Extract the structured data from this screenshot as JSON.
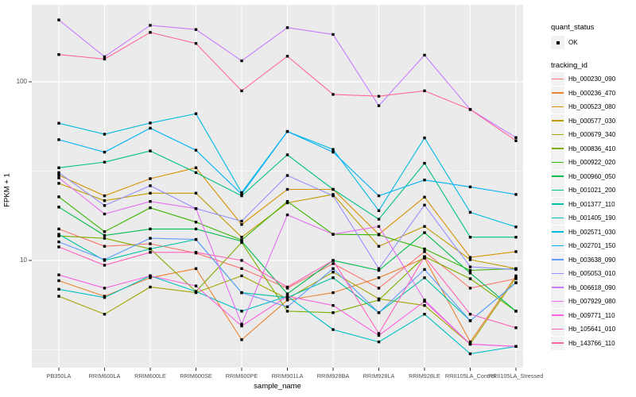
{
  "chart_data": {
    "type": "line",
    "title": "",
    "xlabel": "sample_name",
    "ylabel": "FPKM + 1",
    "y_scale": "log10",
    "grid": true,
    "panel_bg": "#EBEBEB",
    "gridline_color": "#FFFFFF",
    "point_color": "#000000",
    "y_ticks": [
      {
        "label": "100",
        "value": 100
      },
      {
        "label": "10",
        "value": 10
      }
    ],
    "y_minor_breaks": [
      3.162,
      31.62
    ],
    "categories": [
      "PB350LA",
      "RRIM600LA",
      "RRIM600LE",
      "RRIM600SE",
      "RRIM600PE",
      "RRIM901LA",
      "RRIM928BA",
      "RRIM928LA",
      "RRIM928LE",
      "RRII105LA_Control",
      "RRII105LA_Stressed"
    ],
    "legend": {
      "quant_status_title": "quant_status",
      "quant_status_items": [
        {
          "label": "OK"
        }
      ],
      "tracking_title": "tracking_id"
    },
    "series": [
      {
        "name": "Hb_000230_090",
        "color": "#F8766D",
        "values": [
          15.0,
          12.0,
          12.4,
          11.0,
          9.0,
          7.0,
          9.6,
          7.0,
          11.2,
          7.0,
          7.9
        ]
      },
      {
        "name": "Hb_000236_470",
        "color": "#EA8331",
        "values": [
          7.7,
          6.3,
          8.0,
          9.0,
          3.6,
          6.0,
          6.6,
          8.0,
          10.3,
          3.5,
          8.2
        ]
      },
      {
        "name": "Hb_000523_080",
        "color": "#D89000",
        "values": [
          30.0,
          23.0,
          28.7,
          33.0,
          15.9,
          25.0,
          25.0,
          14.0,
          22.6,
          10.4,
          11.2
        ]
      },
      {
        "name": "Hb_000577_030",
        "color": "#C09B00",
        "values": [
          27.0,
          21.6,
          23.8,
          23.8,
          13.5,
          21.0,
          23.4,
          12.0,
          15.5,
          10.1,
          9.0
        ]
      },
      {
        "name": "Hb_000679_340",
        "color": "#A3A500",
        "values": [
          6.3,
          5.0,
          7.1,
          6.6,
          8.2,
          6.1,
          8.6,
          6.1,
          5.6,
          3.4,
          8.0
        ]
      },
      {
        "name": "Hb_000836_410",
        "color": "#7CAE00",
        "values": [
          13.7,
          13.3,
          11.6,
          6.7,
          12.6,
          5.2,
          5.1,
          6.0,
          10.5,
          7.9,
          5.2
        ]
      },
      {
        "name": "Hb_000922_020",
        "color": "#39B600",
        "values": [
          22.7,
          14.5,
          19.7,
          16.4,
          13.0,
          21.4,
          14.0,
          13.9,
          11.6,
          8.8,
          9.0
        ]
      },
      {
        "name": "Hb_000960_050",
        "color": "#00BB4E",
        "values": [
          19.9,
          13.8,
          15.0,
          15.0,
          12.8,
          6.5,
          10.0,
          8.8,
          14.3,
          8.5,
          5.2
        ]
      },
      {
        "name": "Hb_001021_200",
        "color": "#00C087",
        "values": [
          33.0,
          35.5,
          41.0,
          31.0,
          23.0,
          39.0,
          25.0,
          17.0,
          35.0,
          13.5,
          13.5
        ]
      },
      {
        "name": "Hb_001377_110",
        "color": "#00C1A3",
        "values": [
          14.0,
          10.0,
          11.6,
          13.1,
          6.6,
          6.2,
          8.0,
          5.1,
          8.0,
          4.6,
          7.5
        ]
      },
      {
        "name": "Hb_001405_190",
        "color": "#00BFC4",
        "values": [
          6.9,
          6.2,
          8.2,
          6.7,
          5.2,
          6.3,
          4.1,
          3.5,
          5.0,
          3.0,
          3.3
        ]
      },
      {
        "name": "Hb_002571_030",
        "color": "#00BAE0",
        "values": [
          58.6,
          50.9,
          58.8,
          66.3,
          24.0,
          52.7,
          41.8,
          19.0,
          48.5,
          18.6,
          15.4
        ]
      },
      {
        "name": "Hb_002701_150",
        "color": "#00B0F6",
        "values": [
          47.4,
          40.4,
          55.0,
          41.4,
          23.5,
          52.7,
          40.4,
          23.0,
          28.2,
          25.8,
          23.4
        ]
      },
      {
        "name": "Hb_003638_090",
        "color": "#619CFF",
        "values": [
          12.7,
          10.1,
          13.3,
          13.1,
          6.6,
          5.5,
          9.0,
          5.1,
          8.9,
          4.6,
          7.5
        ]
      },
      {
        "name": "Hb_005053_010",
        "color": "#9590FF",
        "values": [
          31.0,
          20.3,
          26.2,
          19.5,
          16.6,
          29.9,
          23.0,
          9.0,
          20.4,
          9.2,
          8.9
        ]
      },
      {
        "name": "Hb_006618_090",
        "color": "#C77CFF",
        "values": [
          222.0,
          138.0,
          207.0,
          196.0,
          131.0,
          201.0,
          184.0,
          73.5,
          141.0,
          70.0,
          48.7
        ]
      },
      {
        "name": "Hb_007929_080",
        "color": "#E76BF3",
        "values": [
          29.0,
          18.2,
          21.4,
          19.5,
          4.4,
          18.0,
          14.0,
          15.5,
          6.0,
          3.4,
          3.3
        ]
      },
      {
        "name": "Hb_009771_110",
        "color": "#F863E0",
        "values": [
          8.3,
          7.0,
          8.2,
          7.2,
          4.3,
          6.3,
          5.6,
          3.8,
          5.9,
          3.4,
          3.3
        ]
      },
      {
        "name": "Hb_105641_010",
        "color": "#FF62BC",
        "values": [
          11.9,
          9.4,
          11.1,
          11.1,
          10.0,
          7.1,
          10.0,
          3.9,
          10.5,
          5.0,
          4.2
        ]
      },
      {
        "name": "Hb_143766_110",
        "color": "#FF6A98",
        "values": [
          142.0,
          134.0,
          189.0,
          164.0,
          89.0,
          139.0,
          85.0,
          83.0,
          89.0,
          70.0,
          46.8
        ]
      }
    ]
  }
}
